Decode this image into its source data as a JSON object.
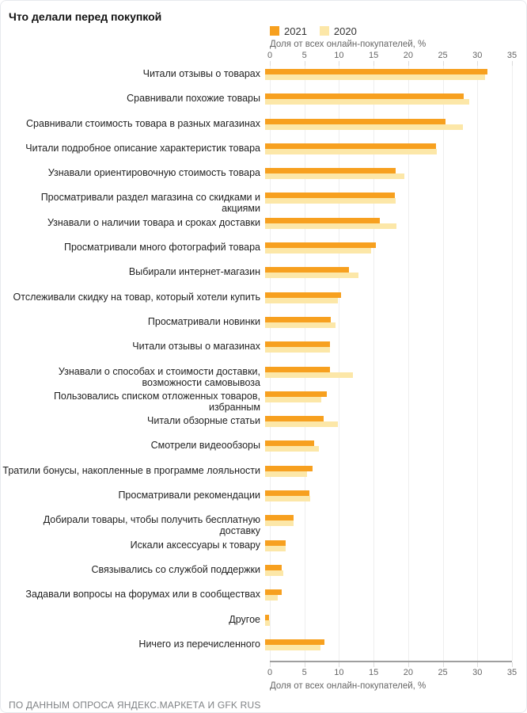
{
  "title": "Что делали перед покупкой",
  "axis": {
    "label": "Доля от всех онлайн-покупателей, %",
    "ticks": [
      0,
      5,
      10,
      15,
      20,
      25,
      30,
      35
    ],
    "max": 35
  },
  "footer": "ПО ДАННЫМ ОПРОСА ЯНДЕКС.МАРКЕТА И GFK RUS",
  "chart_data": {
    "type": "bar",
    "orientation": "horizontal",
    "title": "Что делали перед покупкой",
    "xlabel": "Доля от всех онлайн-покупателей, %",
    "xlim": [
      0,
      35
    ],
    "grid": true,
    "legend_position": "top",
    "categories": [
      "Читали отзывы о товарах",
      "Сравнивали похожие товары",
      "Сравнивали стоимость товара в разных магазинах",
      "Читали подробное описание характеристик товара",
      "Узнавали ориентировочную стоимость товара",
      "Просматривали раздел магазина со скидками и акциями",
      "Узнавали о наличии товара и сроках доставки",
      "Просматривали много фотографий товара",
      "Выбирали интернет-магазин",
      "Отслеживали скидку на товар, который хотели купить",
      "Просматривали новинки",
      "Читали отзывы о магазинах",
      "Узнавали о способах и стоимости доставки, возможности самовывоза",
      "Пользовались списком отложенных товаров, избранным",
      "Читали обзорные статьи",
      "Смотрели видеообзоры",
      "Тратили бонусы, накопленные в программе лояльности",
      "Просматривали рекомендации",
      "Добирали товары, чтобы получить бесплатную доставку",
      "Искали аксессуары к товару",
      "Связывались со службой поддержки",
      "Задавали вопросы на форумах или в сообществах",
      "Другое",
      "Ничего из перечисленного"
    ],
    "series": [
      {
        "name": "2021",
        "color": "#F7A01F",
        "values": [
          31.5,
          28.2,
          25.6,
          24.2,
          18.5,
          18.4,
          16.3,
          15.7,
          11.9,
          10.8,
          9.3,
          9.2,
          9.2,
          8.7,
          8.3,
          7.0,
          6.7,
          6.3,
          4.0,
          2.9,
          2.4,
          2.3,
          0.6,
          8.4
        ]
      },
      {
        "name": "2020",
        "color": "#FCE7A8",
        "values": [
          31.2,
          28.9,
          28.0,
          24.3,
          19.7,
          18.5,
          18.6,
          15.0,
          13.2,
          10.3,
          10.0,
          9.2,
          12.5,
          8.0,
          10.3,
          7.6,
          5.9,
          6.4,
          4.0,
          2.9,
          2.6,
          1.8,
          0.7,
          7.8
        ]
      }
    ]
  }
}
